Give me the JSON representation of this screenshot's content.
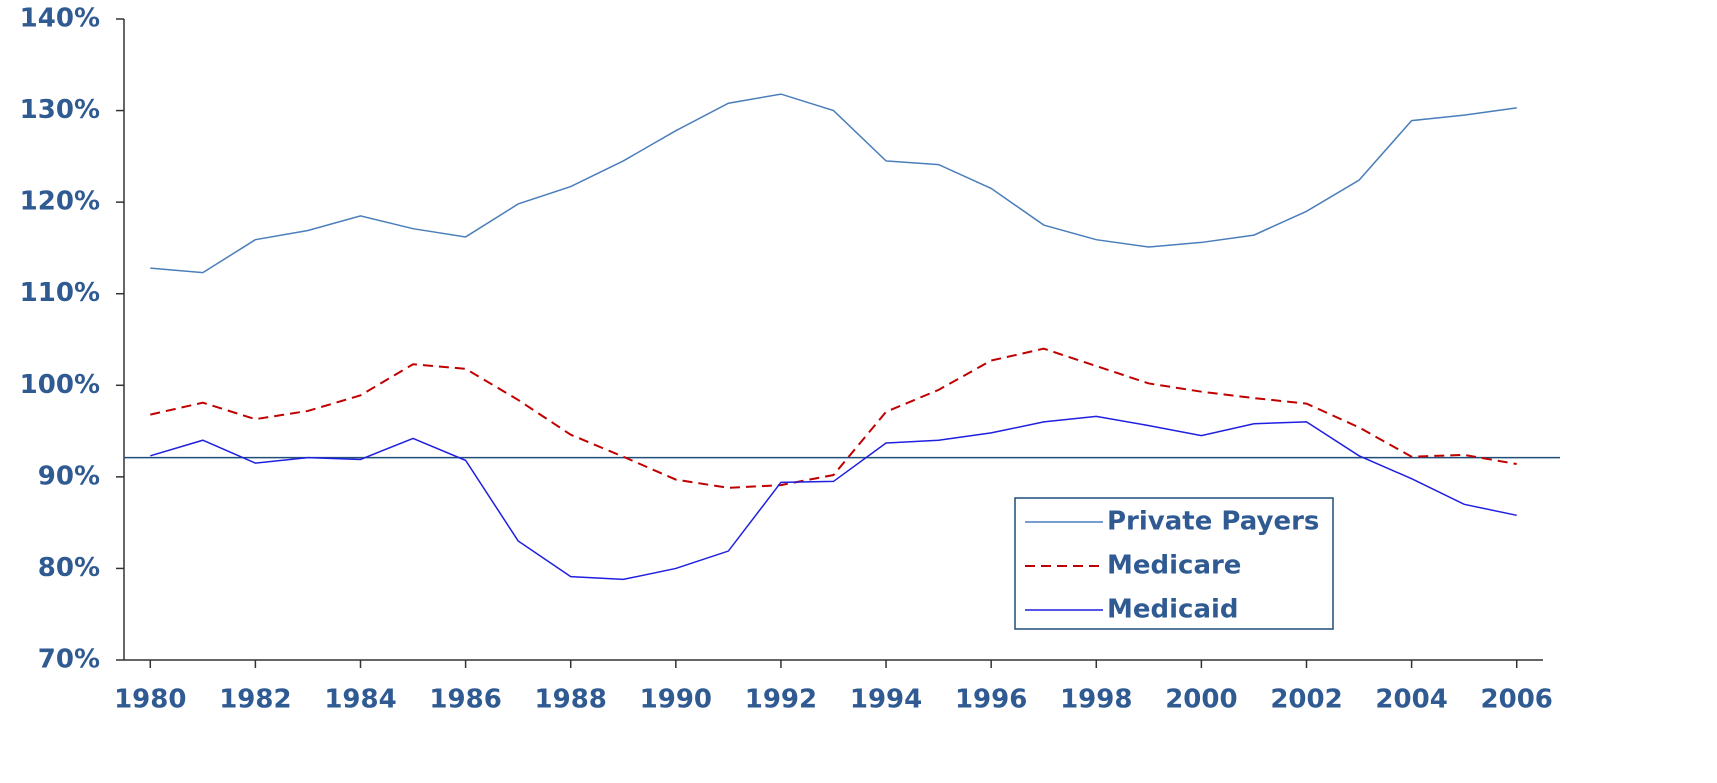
{
  "chart_data": {
    "type": "line",
    "x": [
      1980,
      1981,
      1982,
      1983,
      1984,
      1985,
      1986,
      1987,
      1988,
      1989,
      1990,
      1991,
      1992,
      1993,
      1994,
      1995,
      1996,
      1997,
      1998,
      1999,
      2000,
      2001,
      2002,
      2003,
      2004,
      2005,
      2006
    ],
    "xlim": [
      1979.5,
      2006.5
    ],
    "xticks": [
      1980,
      1982,
      1984,
      1986,
      1988,
      1990,
      1992,
      1994,
      1996,
      1998,
      2000,
      2002,
      2004,
      2006
    ],
    "ylim": [
      70,
      140
    ],
    "yticks": [
      {
        "value": 70,
        "label": "70%"
      },
      {
        "value": 80,
        "label": "80%"
      },
      {
        "value": 90,
        "label": "90%"
      },
      {
        "value": 100,
        "label": "100%"
      },
      {
        "value": 110,
        "label": "110%"
      },
      {
        "value": 120,
        "label": "120%"
      },
      {
        "value": 130,
        "label": "130%"
      },
      {
        "value": 140,
        "label": "140%"
      }
    ],
    "reference_line": 92.1,
    "legend": "lower right",
    "series": [
      {
        "name": "Private Payers",
        "color": "#4a7ebb",
        "style": "solid",
        "values": [
          112.8,
          112.3,
          115.9,
          116.9,
          118.5,
          117.1,
          116.2,
          119.8,
          121.7,
          124.5,
          127.8,
          130.8,
          131.8,
          130.0,
          124.5,
          124.1,
          121.5,
          117.5,
          115.9,
          115.1,
          115.6,
          116.4,
          119.0,
          122.4,
          128.9,
          129.5,
          130.3
        ]
      },
      {
        "name": "Medicare",
        "color": "#c00000",
        "style": "dashed",
        "values": [
          96.8,
          98.1,
          96.3,
          97.2,
          98.9,
          102.3,
          101.8,
          98.4,
          94.6,
          92.2,
          89.7,
          88.8,
          89.1,
          90.2,
          97.1,
          99.5,
          102.7,
          104.0,
          102.1,
          100.2,
          99.3,
          98.6,
          98.0,
          95.4,
          92.2,
          92.4,
          91.4
        ]
      },
      {
        "name": "Medicaid",
        "color": "#1f1fe0",
        "style": "solid",
        "values": [
          92.3,
          94.0,
          91.5,
          92.1,
          91.9,
          94.2,
          91.8,
          83.0,
          79.1,
          78.8,
          80.0,
          81.9,
          89.4,
          89.5,
          93.7,
          94.0,
          94.8,
          96.0,
          96.6,
          95.6,
          94.5,
          95.8,
          96.0,
          92.3,
          89.8,
          87.0,
          85.8
        ]
      }
    ]
  }
}
